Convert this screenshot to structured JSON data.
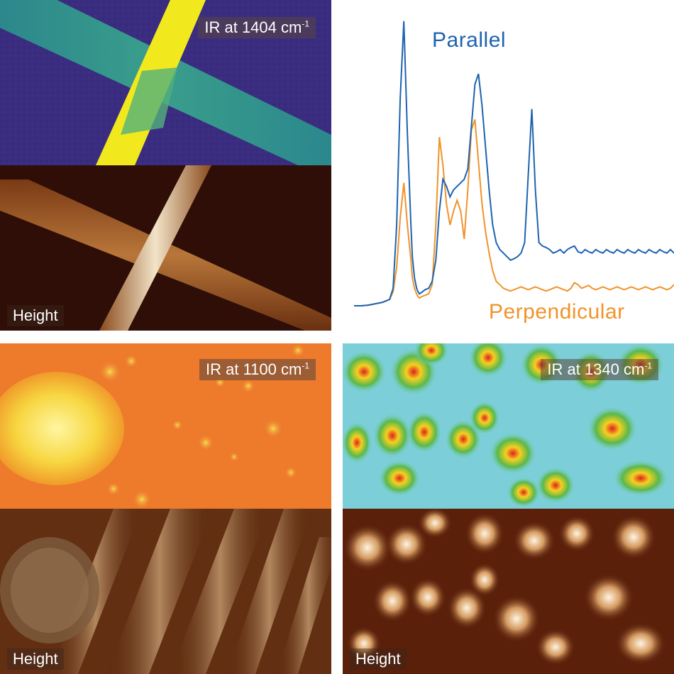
{
  "panels": {
    "top_left": {
      "ir_label": "IR at 1404 cm",
      "ir_sup": "-1",
      "height_label": "Height"
    },
    "spectrum": {
      "legend_parallel": "Parallel",
      "legend_perpendicular": "Perpendicular",
      "color_parallel": "#1e63b0",
      "color_perpendicular": "#f0932a"
    },
    "bottom_left": {
      "ir_label": "IR at 1100 cm",
      "ir_sup": "-1",
      "height_label": "Height"
    },
    "bottom_right": {
      "ir_label": "IR at 1340 cm",
      "ir_sup": "-1",
      "height_label": "Height"
    }
  },
  "chart_data": {
    "type": "line",
    "x": [
      0,
      10,
      20,
      30,
      40,
      50,
      55,
      60,
      65,
      70,
      75,
      80,
      82,
      85,
      88,
      90,
      92,
      95,
      100,
      105,
      110,
      115,
      120,
      125,
      130,
      135,
      140,
      145,
      150,
      155,
      160,
      165,
      170,
      175,
      180,
      185,
      190,
      195,
      200,
      205,
      210,
      215,
      220,
      225,
      230,
      235,
      240,
      245,
      250,
      255,
      260,
      265,
      270,
      275,
      280,
      285,
      290,
      295,
      300,
      305,
      310,
      315,
      320,
      325,
      330,
      335,
      340,
      345,
      350,
      355,
      360,
      365,
      370,
      375,
      380,
      385,
      390,
      395,
      400,
      405,
      410,
      415,
      420,
      425,
      430,
      435,
      440,
      445,
      450
    ],
    "series": [
      {
        "name": "Parallel",
        "values": [
          5,
          5,
          6,
          8,
          10,
          14,
          30,
          120,
          300,
          410,
          250,
          120,
          75,
          45,
          30,
          25,
          22,
          24,
          28,
          30,
          40,
          70,
          140,
          185,
          175,
          160,
          170,
          175,
          180,
          185,
          200,
          260,
          320,
          335,
          290,
          230,
          170,
          120,
          95,
          85,
          80,
          75,
          70,
          72,
          75,
          80,
          95,
          190,
          285,
          170,
          95,
          90,
          88,
          85,
          80,
          82,
          85,
          80,
          85,
          88,
          90,
          82,
          80,
          85,
          82,
          80,
          85,
          82,
          80,
          85,
          82,
          80,
          85,
          82,
          80,
          85,
          82,
          80,
          85,
          82,
          80,
          85,
          82,
          80,
          85,
          82,
          80,
          85,
          80
        ]
      },
      {
        "name": "Perpendicular",
        "values": [
          5,
          5,
          6,
          8,
          10,
          14,
          25,
          60,
          130,
          180,
          120,
          70,
          45,
          30,
          22,
          18,
          16,
          18,
          20,
          22,
          35,
          120,
          245,
          205,
          150,
          120,
          140,
          155,
          140,
          100,
          170,
          255,
          270,
          210,
          150,
          110,
          80,
          55,
          40,
          35,
          30,
          28,
          26,
          28,
          30,
          32,
          30,
          28,
          30,
          32,
          30,
          28,
          26,
          28,
          30,
          32,
          30,
          28,
          26,
          30,
          38,
          35,
          30,
          32,
          34,
          30,
          28,
          30,
          32,
          30,
          28,
          30,
          32,
          30,
          28,
          30,
          32,
          30,
          28,
          30,
          32,
          30,
          28,
          30,
          32,
          30,
          28,
          30,
          35
        ]
      }
    ]
  }
}
